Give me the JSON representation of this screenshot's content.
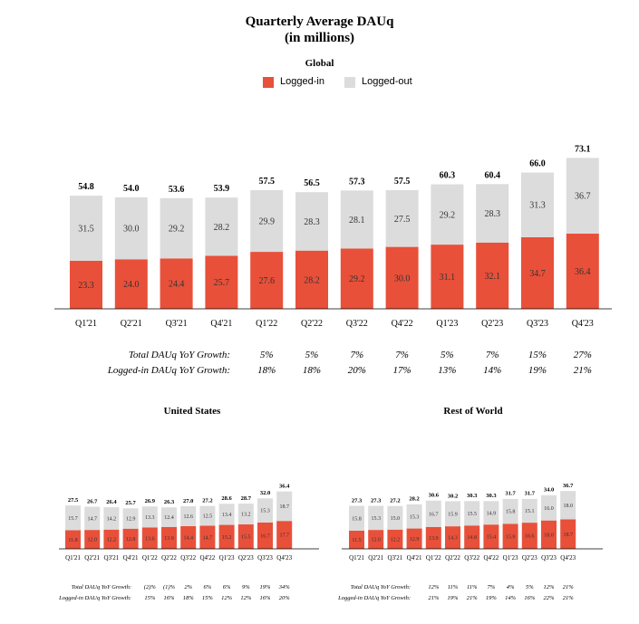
{
  "title_line1": "Quarterly Average DAUq",
  "title_line2": "(in millions)",
  "legend": {
    "logged_in": "Logged-in",
    "logged_out": "Logged-out",
    "logged_in_color": "#e8503a",
    "logged_out_color": "#dcdcdc"
  },
  "chart_data": [
    {
      "type": "bar",
      "stacked": true,
      "title": "Global",
      "categories": [
        "Q1'21",
        "Q2'21",
        "Q3'21",
        "Q4'21",
        "Q1'22",
        "Q2'22",
        "Q3'22",
        "Q4'22",
        "Q1'23",
        "Q2'23",
        "Q3'23",
        "Q4'23"
      ],
      "series": [
        {
          "name": "Logged-in",
          "values": [
            23.3,
            24.0,
            24.4,
            25.7,
            27.6,
            28.2,
            29.2,
            30.0,
            31.1,
            32.1,
            34.7,
            36.4
          ]
        },
        {
          "name": "Logged-out",
          "values": [
            31.5,
            30.0,
            29.2,
            28.2,
            29.9,
            28.3,
            28.1,
            27.5,
            29.2,
            28.3,
            31.3,
            36.7
          ]
        }
      ],
      "totals": [
        54.8,
        54.0,
        53.6,
        53.9,
        57.5,
        56.5,
        57.3,
        57.5,
        60.3,
        60.4,
        66.0,
        73.1
      ],
      "growth_rows": [
        {
          "label": "Total DAUq YoY Growth:",
          "values": [
            "5%",
            "5%",
            "7%",
            "7%",
            "5%",
            "7%",
            "15%",
            "27%"
          ]
        },
        {
          "label": "Logged-in DAUq YoY Growth:",
          "values": [
            "18%",
            "18%",
            "20%",
            "17%",
            "13%",
            "14%",
            "19%",
            "21%"
          ]
        }
      ]
    },
    {
      "type": "bar",
      "stacked": true,
      "title": "United States",
      "categories": [
        "Q1'21",
        "Q2'21",
        "Q3'21",
        "Q4'21",
        "Q1'22",
        "Q2'22",
        "Q3'22",
        "Q4'22",
        "Q1'23",
        "Q2'23",
        "Q3'23",
        "Q4'23"
      ],
      "series": [
        {
          "name": "Logged-in",
          "values": [
            11.8,
            12.0,
            12.2,
            12.8,
            13.6,
            13.9,
            14.4,
            14.7,
            15.2,
            15.5,
            16.7,
            17.7
          ]
        },
        {
          "name": "Logged-out",
          "values": [
            15.7,
            14.7,
            14.2,
            12.9,
            13.3,
            12.4,
            12.6,
            12.5,
            13.4,
            13.2,
            15.3,
            18.7
          ]
        }
      ],
      "totals": [
        27.5,
        26.7,
        26.4,
        25.7,
        26.9,
        26.3,
        27.0,
        27.2,
        28.6,
        28.7,
        32.0,
        36.4
      ],
      "growth_rows": [
        {
          "label": "Total DAUq YoY Growth:",
          "values": [
            "(2)%",
            "(1)%",
            "2%",
            "6%",
            "6%",
            "9%",
            "19%",
            "34%"
          ]
        },
        {
          "label": "Logged-in DAUq YoY Growth:",
          "values": [
            "15%",
            "16%",
            "18%",
            "15%",
            "12%",
            "12%",
            "16%",
            "20%"
          ]
        }
      ]
    },
    {
      "type": "bar",
      "stacked": true,
      "title": "Rest of World",
      "categories": [
        "Q1'21",
        "Q2'21",
        "Q3'21",
        "Q4'21",
        "Q1'22",
        "Q2'22",
        "Q3'22",
        "Q4'22",
        "Q1'23",
        "Q2'23",
        "Q3'23",
        "Q4'23"
      ],
      "series": [
        {
          "name": "Logged-in",
          "values": [
            11.5,
            12.0,
            12.2,
            12.9,
            13.9,
            14.3,
            14.8,
            15.4,
            15.9,
            16.6,
            18.0,
            18.7
          ]
        },
        {
          "name": "Logged-out",
          "values": [
            15.8,
            15.3,
            15.0,
            15.3,
            16.7,
            15.9,
            15.5,
            14.9,
            15.8,
            15.1,
            16.0,
            18.0
          ]
        }
      ],
      "totals": [
        27.3,
        27.3,
        27.2,
        28.2,
        30.6,
        30.2,
        30.3,
        30.3,
        31.7,
        31.7,
        34.0,
        36.7
      ],
      "growth_rows": [
        {
          "label": "Total DAUq YoY Growth:",
          "values": [
            "12%",
            "11%",
            "11%",
            "7%",
            "4%",
            "5%",
            "12%",
            "21%"
          ]
        },
        {
          "label": "Logged-in DAUq YoY Growth:",
          "values": [
            "21%",
            "19%",
            "21%",
            "19%",
            "14%",
            "16%",
            "22%",
            "21%"
          ]
        }
      ]
    }
  ]
}
